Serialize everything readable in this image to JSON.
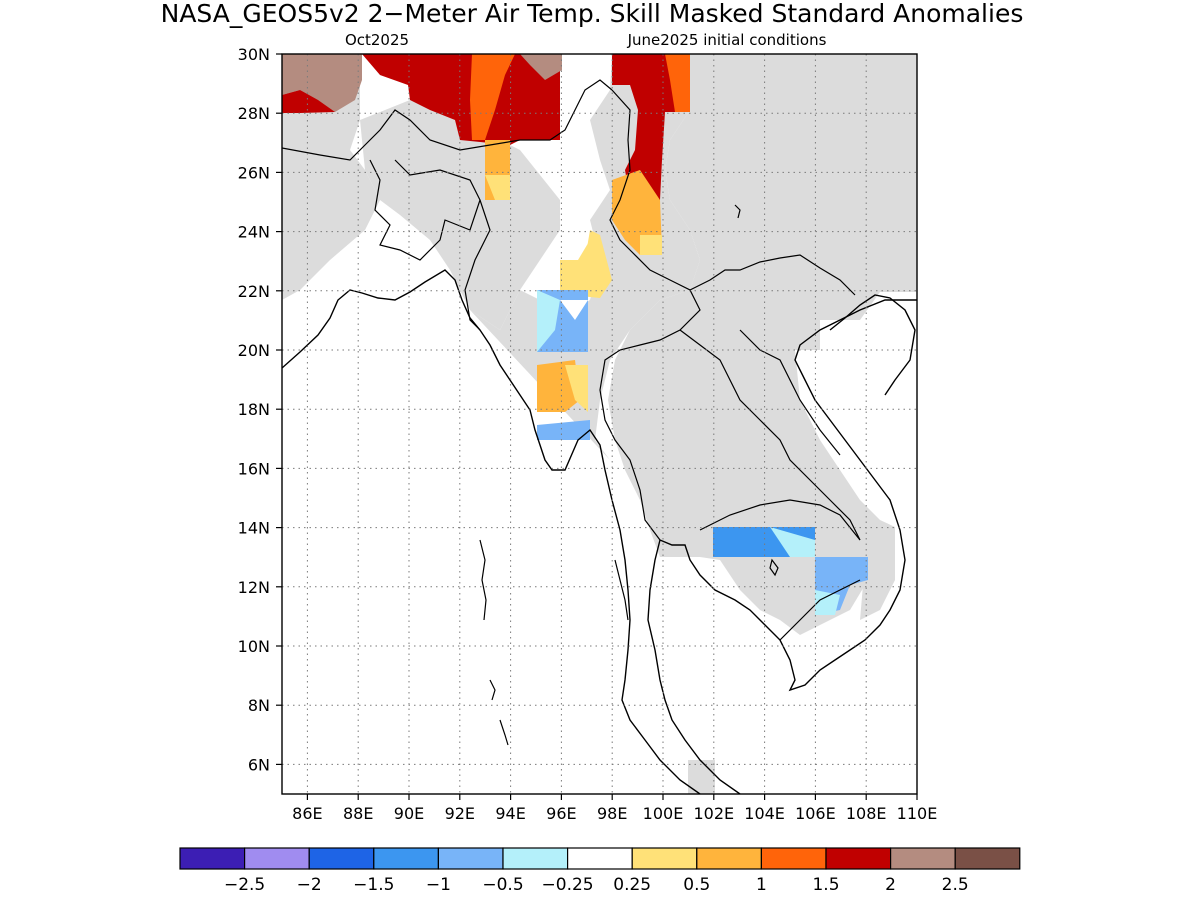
{
  "title": "NASA_GEOS5v2 2−Meter Air Temp. Skill Masked Standard Anomalies",
  "subtitle_left": "Oct2025",
  "subtitle_right": "June2025 initial conditions",
  "map": {
    "lon_range": [
      85,
      110
    ],
    "lat_range": [
      5,
      30
    ],
    "lon_ticks": [
      "86E",
      "88E",
      "90E",
      "92E",
      "94E",
      "96E",
      "98E",
      "100E",
      "102E",
      "104E",
      "106E",
      "108E",
      "110E"
    ],
    "lat_ticks": [
      "6N",
      "8N",
      "10N",
      "12N",
      "14N",
      "16N",
      "18N",
      "20N",
      "22N",
      "24N",
      "26N",
      "28N",
      "30N"
    ],
    "grid": "dotted",
    "masked_color": "#dcdcdc",
    "regions": [
      {
        "name": "north-himalaya-brown",
        "level": 2.25,
        "lon": [
          85,
          88
        ],
        "lat": [
          28,
          30
        ]
      },
      {
        "name": "north-himalaya-red",
        "level": 1.75,
        "lon": [
          88,
          96
        ],
        "lat": [
          27,
          30
        ]
      },
      {
        "name": "north-orange-patch",
        "level": 1.25,
        "lon": [
          92.5,
          94.5
        ],
        "lat": [
          28,
          30
        ]
      },
      {
        "name": "northeast-red",
        "level": 1.75,
        "lon": [
          98,
          100
        ],
        "lat": [
          25,
          30
        ]
      },
      {
        "name": "arunachal-orange",
        "level": 0.75,
        "lon": [
          93,
          94
        ],
        "lat": [
          25,
          27
        ]
      },
      {
        "name": "yunnan-orange",
        "level": 0.75,
        "lon": [
          98,
          100
        ],
        "lat": [
          23.5,
          26
        ]
      },
      {
        "name": "myanmar-north-yellow",
        "level": 0.5,
        "lon": [
          96,
          97.5
        ],
        "lat": [
          22,
          24
        ]
      },
      {
        "name": "myanmar-mid-blue",
        "level": -0.5,
        "lon": [
          95,
          97
        ],
        "lat": [
          20,
          22
        ]
      },
      {
        "name": "myanmar-central-orange",
        "level": 0.75,
        "lon": [
          95,
          96.5
        ],
        "lat": [
          18,
          19.5
        ]
      },
      {
        "name": "myanmar-south-blue",
        "level": -0.75,
        "lon": [
          95,
          97
        ],
        "lat": [
          17,
          17.7
        ]
      },
      {
        "name": "cambodia-north-blue",
        "level": -1.25,
        "lon": [
          102,
          105.5
        ],
        "lat": [
          13,
          14
        ]
      },
      {
        "name": "cambodia-south-blue",
        "level": -0.75,
        "lon": [
          105.5,
          107
        ],
        "lat": [
          11,
          13
        ]
      }
    ]
  },
  "colorbar": {
    "colors": [
      "#3c1eb4",
      "#a08cf0",
      "#1e64e6",
      "#3c96f0",
      "#78b4f8",
      "#b4f0fa",
      "#ffffff",
      "#ffe178",
      "#ffb43c",
      "#ff640a",
      "#c00000",
      "#b48c80",
      "#7a5046"
    ],
    "labels": [
      "−2.5",
      "−2",
      "−1.5",
      "−1",
      "−0.5",
      "−0.25",
      "0.25",
      "0.5",
      "1",
      "1.5",
      "2",
      "2.5"
    ]
  }
}
